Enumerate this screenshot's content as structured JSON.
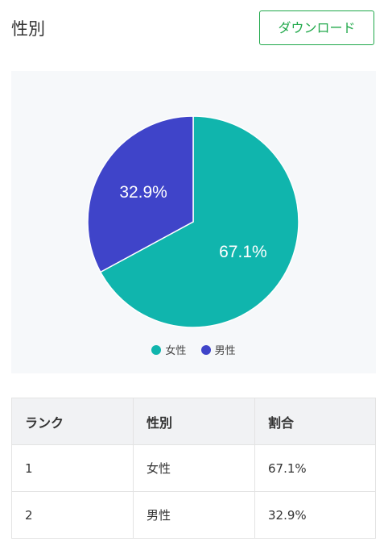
{
  "header": {
    "title": "性別",
    "download_label": "ダウンロード"
  },
  "colors": {
    "female": "#10b5ad",
    "male": "#3f44c9",
    "button_accent": "#20a84a"
  },
  "chart_data": {
    "type": "pie",
    "categories": [
      "女性",
      "男性"
    ],
    "values": [
      67.1,
      32.9
    ],
    "labels": [
      "67.1%",
      "32.9%"
    ],
    "legend_position": "bottom"
  },
  "table": {
    "headers": [
      "ランク",
      "性別",
      "割合"
    ],
    "rows": [
      [
        "1",
        "女性",
        "67.1%"
      ],
      [
        "2",
        "男性",
        "32.9%"
      ]
    ]
  }
}
